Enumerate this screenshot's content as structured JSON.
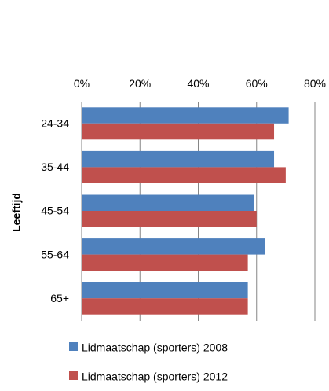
{
  "chart_data": {
    "type": "bar",
    "orientation": "horizontal",
    "title": "",
    "ylabel": "Leeftijd",
    "xlabel": "",
    "categories": [
      "24-34",
      "35-44",
      "45-54",
      "55-64",
      "65+"
    ],
    "series": [
      {
        "name": "Lidmaatschap (sporters) 2008",
        "color": "#4F81BD",
        "values": [
          71,
          66,
          59,
          63,
          57
        ]
      },
      {
        "name": "Lidmaatschap (sporters) 2012",
        "color": "#C0504D",
        "values": [
          66,
          70,
          60,
          57,
          57
        ]
      }
    ],
    "xlim": [
      0,
      80
    ],
    "xticks": [
      0,
      20,
      40,
      60,
      80
    ],
    "xtick_labels": [
      "0%",
      "20%",
      "40%",
      "60%",
      "80%"
    ],
    "x_axis_position": "top",
    "grid": true,
    "legend": "bottom"
  }
}
